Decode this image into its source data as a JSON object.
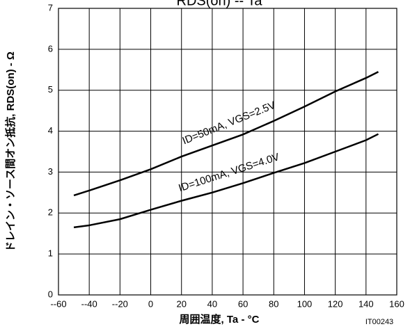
{
  "chart_data": {
    "type": "line",
    "title": "RDS(on) -- Ta",
    "x_label": "周囲温度, Ta - °C",
    "y_label": "ドレイン・ソース間オン抵抗, RDS(on) - Ω",
    "code": "IT00243",
    "x": [
      -50,
      -40,
      -20,
      0,
      20,
      40,
      60,
      80,
      100,
      120,
      140,
      148
    ],
    "series": [
      {
        "name": "ID=50mA, VGS=2.5V",
        "color": "#000000",
        "values": [
          2.43,
          2.55,
          2.8,
          3.07,
          3.38,
          3.65,
          3.92,
          4.25,
          4.6,
          4.97,
          5.3,
          5.45
        ]
      },
      {
        "name": "ID=100mA, VGS=4.0V",
        "color": "#000000",
        "values": [
          1.65,
          1.7,
          1.85,
          2.08,
          2.3,
          2.5,
          2.73,
          2.98,
          3.22,
          3.5,
          3.78,
          3.93
        ]
      }
    ],
    "xlim": [
      -60,
      160
    ],
    "xticks": [
      {
        "value": -60,
        "label": "--60"
      },
      {
        "value": -40,
        "label": "--40"
      },
      {
        "value": -20,
        "label": "--20"
      },
      0,
      20,
      40,
      60,
      80,
      100,
      120,
      140,
      160
    ],
    "ylim": [
      0,
      7
    ],
    "yticks": [
      0,
      1,
      2,
      3,
      4,
      5,
      6,
      7
    ],
    "grid": true
  }
}
